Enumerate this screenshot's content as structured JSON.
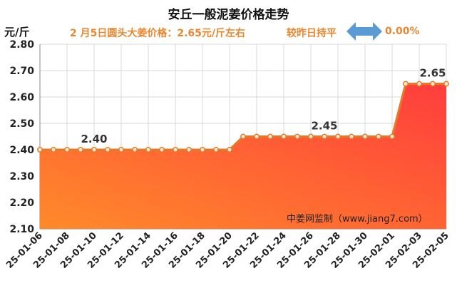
{
  "header": {
    "title": "安丘一般泥姜价格走势",
    "unit": "元/斤",
    "note": "2 月5日圆头大姜价格：2.65元/斤左右",
    "compare_label": "较昨日持平",
    "compare_icon": "double-arrow-icon",
    "compare_value": "0.00%"
  },
  "watermark": "中姜网监制（www.jiang7.com）",
  "colors": {
    "accent": "#e8872f",
    "line": "#e07b2a",
    "fill_top": "#ff3d3d",
    "fill_bottom": "#ff8a2a",
    "arrow": "#5b9bd5"
  },
  "chart_data": {
    "type": "area",
    "ylim": [
      2.1,
      2.8
    ],
    "yticks": [
      "2.10",
      "2.20",
      "2.30",
      "2.40",
      "2.50",
      "2.60",
      "2.70",
      "2.80"
    ],
    "x": [
      "25-01-06",
      "25-01-07",
      "25-01-08",
      "25-01-09",
      "25-01-10",
      "25-01-11",
      "25-01-12",
      "25-01-13",
      "25-01-14",
      "25-01-15",
      "25-01-16",
      "25-01-17",
      "25-01-18",
      "25-01-19",
      "25-01-20",
      "25-01-21",
      "25-01-22",
      "25-01-23",
      "25-01-24",
      "25-01-25",
      "25-01-26",
      "25-01-27",
      "25-01-28",
      "25-01-29",
      "25-01-30",
      "25-01-31",
      "25-02-01",
      "25-02-02",
      "25-02-03",
      "25-02-04",
      "25-02-05"
    ],
    "xtick_labels": [
      "25-01-06",
      "25-01-08",
      "25-01-10",
      "25-01-12",
      "25-01-14",
      "25-01-16",
      "25-01-18",
      "25-01-20",
      "25-01-22",
      "25-01-24",
      "25-01-26",
      "25-01-28",
      "25-01-30",
      "25-02-01",
      "25-02-03",
      "25-02-05"
    ],
    "values": [
      2.4,
      2.4,
      2.4,
      2.4,
      2.4,
      2.4,
      2.4,
      2.4,
      2.4,
      2.4,
      2.4,
      2.4,
      2.4,
      2.4,
      2.4,
      2.45,
      2.45,
      2.45,
      2.45,
      2.45,
      2.45,
      2.45,
      2.45,
      2.45,
      2.45,
      2.45,
      2.45,
      2.65,
      2.65,
      2.65,
      2.65
    ],
    "data_labels": [
      {
        "index": 4,
        "text": "2.40"
      },
      {
        "index": 21,
        "text": "2.45"
      },
      {
        "index": 29,
        "text": "2.65"
      }
    ]
  }
}
